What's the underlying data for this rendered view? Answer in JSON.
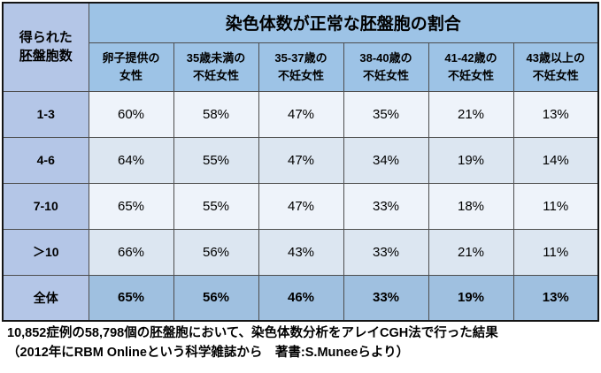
{
  "table": {
    "corner": "得られた\n胚盤胞数",
    "title": "染色体数が正常な胚盤胞の割合",
    "col_headers": [
      "卵子提供の\n女性",
      "35歳未満の\n不妊女性",
      "35-37歳の\n不妊女性",
      "38-40歳の\n不妊女性",
      "41-42歳の\n不妊女性",
      "43歳以上の\n不妊女性"
    ],
    "rows": [
      {
        "label": "1-3",
        "values": [
          "60%",
          "58%",
          "47%",
          "35%",
          "21%",
          "13%"
        ]
      },
      {
        "label": "4-6",
        "values": [
          "64%",
          "55%",
          "47%",
          "34%",
          "19%",
          "14%"
        ]
      },
      {
        "label": "7-10",
        "values": [
          "65%",
          "55%",
          "47%",
          "33%",
          "18%",
          "11%"
        ]
      },
      {
        "label": "＞10",
        "values": [
          "66%",
          "56%",
          "43%",
          "33%",
          "21%",
          "11%"
        ]
      },
      {
        "label": "全体",
        "values": [
          "65%",
          "56%",
          "46%",
          "33%",
          "19%",
          "13%"
        ]
      }
    ]
  },
  "footer": {
    "line1": "10,852症例の58,798個の胚盤胞において、染色体数分析をアレイCGH法で行った結果",
    "line2": "（2012年にRBM Onlineという科学雑誌から　著書:S.Muneeらより）"
  },
  "colors": {
    "header_blue": "#9dc3e6",
    "label_blue": "#b4c6e7",
    "row_light": "#eef3fa",
    "row_mid": "#dce6f1",
    "total_blue": "#9fc0e0",
    "grid_line": "#4d4d4d",
    "outer_border": "#141414"
  },
  "chart_data": {
    "type": "table",
    "title": "染色体数が正常な胚盤胞の割合",
    "row_dimension": "得られた胚盤胞数",
    "columns": [
      "卵子提供の女性",
      "35歳未満の不妊女性",
      "35-37歳の不妊女性",
      "38-40歳の不妊女性",
      "41-42歳の不妊女性",
      "43歳以上の不妊女性"
    ],
    "row_labels": [
      "1-3",
      "4-6",
      "7-10",
      "＞10",
      "全体"
    ],
    "values_percent": [
      [
        60,
        58,
        47,
        35,
        21,
        13
      ],
      [
        64,
        55,
        47,
        34,
        19,
        14
      ],
      [
        65,
        55,
        47,
        33,
        18,
        11
      ],
      [
        66,
        56,
        43,
        33,
        21,
        11
      ],
      [
        65,
        56,
        46,
        33,
        19,
        13
      ]
    ],
    "caption": "10,852症例の58,798個の胚盤胞において、染色体数分析をアレイCGH法で行った結果（2012年にRBM Onlineという科学雑誌から　著書:S.Muneeらより）"
  }
}
